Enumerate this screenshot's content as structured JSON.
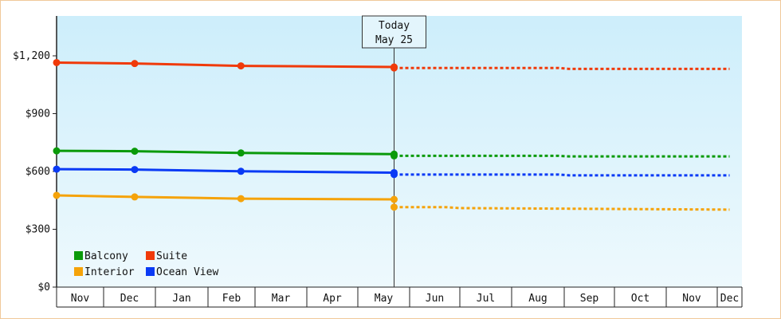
{
  "chart_data": {
    "type": "line",
    "title": "",
    "xlabel": "",
    "ylabel": "",
    "x": [
      "Nov",
      "Dec",
      "Jan",
      "Feb",
      "Mar",
      "Apr",
      "May",
      "Jun",
      "Jul",
      "Aug",
      "Sep",
      "Oct",
      "Nov",
      "Dec"
    ],
    "y_ticks": [
      "$0",
      "$300",
      "$600",
      "$900",
      "$1,200"
    ],
    "ylim": [
      0,
      1200
    ],
    "grid": false,
    "legend_position": "bottom-left",
    "today_marker": {
      "line1": "Today",
      "line2": "May 25"
    },
    "series": [
      {
        "name": "Balcony",
        "color": "#0a9a0a",
        "actual": [
          [
            0,
            707
          ],
          [
            1.6,
            705
          ],
          [
            3.7,
            696
          ],
          [
            6.7,
            690
          ]
        ],
        "forecast": [
          [
            6.7,
            681
          ],
          [
            9.9,
            681
          ],
          [
            10.1,
            678
          ],
          [
            13.5,
            678
          ]
        ]
      },
      {
        "name": "Suite",
        "color": "#f03a0a",
        "actual": [
          [
            0,
            1165
          ],
          [
            1.6,
            1160
          ],
          [
            3.7,
            1148
          ],
          [
            6.7,
            1142
          ]
        ],
        "forecast": [
          [
            6.7,
            1137
          ],
          [
            9.9,
            1137
          ],
          [
            10.1,
            1132
          ],
          [
            13.5,
            1132
          ]
        ]
      },
      {
        "name": "Interior",
        "color": "#f5a30a",
        "actual": [
          [
            0,
            476
          ],
          [
            1.6,
            468
          ],
          [
            3.7,
            459
          ],
          [
            6.7,
            455
          ]
        ],
        "forecast": [
          [
            6.7,
            415
          ],
          [
            7.7,
            415
          ],
          [
            8.0,
            410
          ],
          [
            13.5,
            402
          ]
        ]
      },
      {
        "name": "Ocean View",
        "color": "#0a3af5",
        "actual": [
          [
            0,
            612
          ],
          [
            1.6,
            610
          ],
          [
            3.7,
            601
          ],
          [
            6.7,
            594
          ]
        ],
        "forecast": [
          [
            6.7,
            584
          ],
          [
            9.9,
            584
          ],
          [
            10.1,
            580
          ],
          [
            13.5,
            580
          ]
        ]
      }
    ]
  }
}
